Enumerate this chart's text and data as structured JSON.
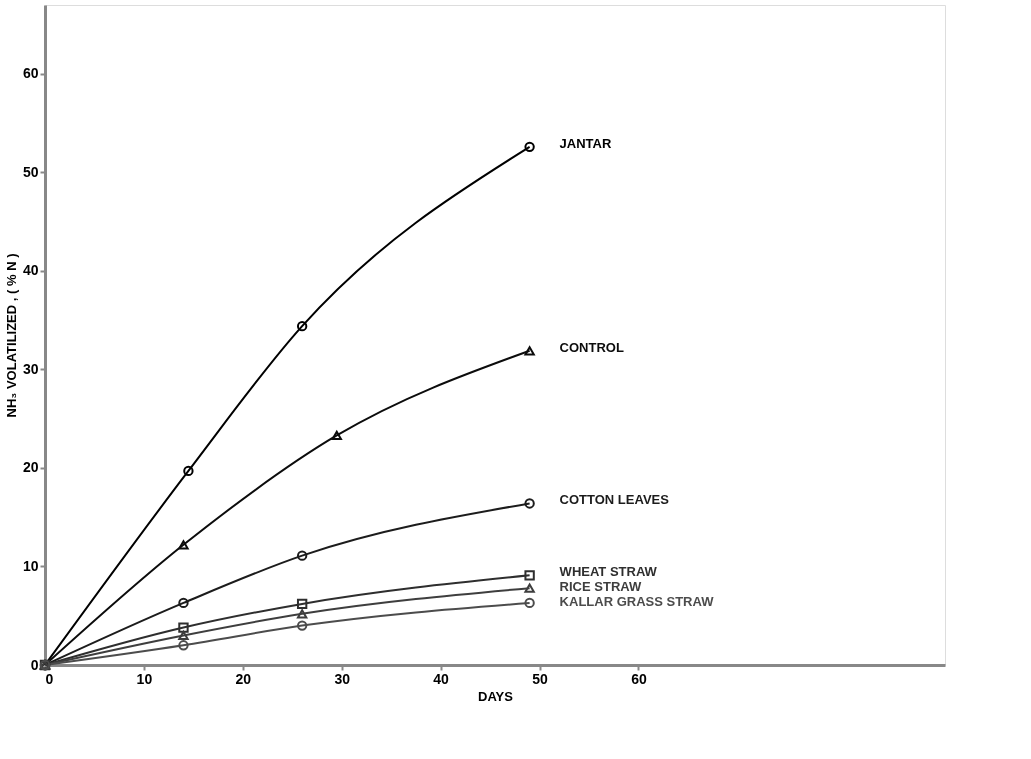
{
  "chart_data": {
    "type": "line",
    "xlabel": "DAYS",
    "ylabel": "NH₃ VOLATILIZED , ( % N )",
    "xlim": [
      0,
      91
    ],
    "ylim": [
      0,
      67
    ],
    "xticks": [
      0,
      10,
      20,
      30,
      40,
      50,
      60
    ],
    "yticks": [
      0,
      10,
      20,
      30,
      40,
      50,
      60
    ],
    "line_style": "solid",
    "series": [
      {
        "name": "JANTAR",
        "color": "#000000",
        "marker": "circle",
        "x": [
          0,
          14.5,
          26,
          49
        ],
        "values": [
          0,
          19.7,
          34.4,
          52.6
        ]
      },
      {
        "name": "CONTROL",
        "color": "#0c0c0c",
        "marker": "triangle",
        "x": [
          0,
          14,
          29.5,
          49
        ],
        "values": [
          0,
          12.2,
          23.3,
          31.9
        ]
      },
      {
        "name": "COTTON LEAVES",
        "color": "#1c1c1c",
        "marker": "circle",
        "x": [
          0,
          14,
          26,
          49
        ],
        "values": [
          0,
          6.3,
          11.1,
          16.4
        ]
      },
      {
        "name": "WHEAT STRAW",
        "color": "#2e2e2e",
        "marker": "square",
        "x": [
          0,
          14,
          26,
          49
        ],
        "values": [
          0,
          3.8,
          6.2,
          9.1
        ]
      },
      {
        "name": "RICE STRAW",
        "color": "#3e3e3e",
        "marker": "triangle",
        "x": [
          0,
          14,
          26,
          49
        ],
        "values": [
          0,
          3.0,
          5.2,
          7.8
        ]
      },
      {
        "name": "KALLAR GRASS STRAW",
        "color": "#4c4c4c",
        "marker": "circle",
        "x": [
          0,
          14,
          26,
          49
        ],
        "values": [
          0,
          2.0,
          4.0,
          6.3
        ]
      }
    ]
  }
}
